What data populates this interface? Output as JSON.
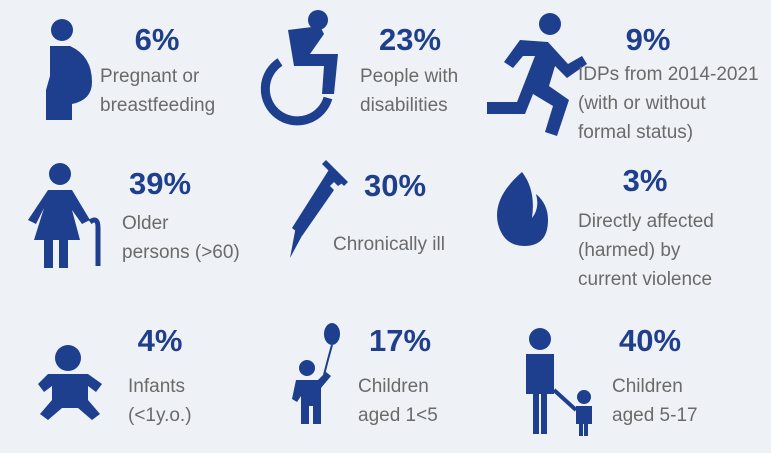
{
  "items": [
    {
      "percent": "6%",
      "label": [
        "Pregnant or",
        "breastfeeding"
      ]
    },
    {
      "percent": "23%",
      "label": [
        "People with",
        "disabilities"
      ]
    },
    {
      "percent": "9%",
      "label": [
        "IDPs from 2014-2021",
        "(with or without",
        "formal status)"
      ]
    },
    {
      "percent": "39%",
      "label": [
        "Older",
        "persons (>60)"
      ]
    },
    {
      "percent": "30%",
      "label": [
        "Chronically ill"
      ]
    },
    {
      "percent": "3%",
      "label": [
        "Directly affected",
        "(harmed) by",
        "current violence"
      ]
    },
    {
      "percent": "4%",
      "label": [
        "Infants",
        "(<1y.o.)"
      ]
    },
    {
      "percent": "17%",
      "label": [
        "Children",
        "aged 1<5"
      ]
    },
    {
      "percent": "40%",
      "label": [
        "Children",
        "aged 5-17"
      ]
    }
  ]
}
